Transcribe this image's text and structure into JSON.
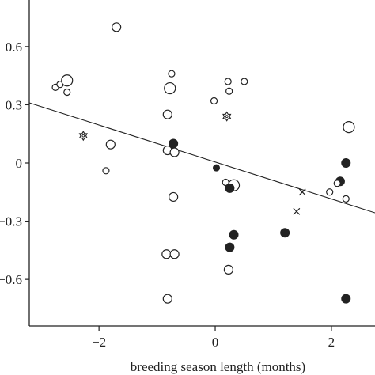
{
  "chart_data": {
    "type": "scatter",
    "title": "",
    "xlabel": "breeding season length (months)",
    "ylabel": "",
    "xlim": [
      -3.2,
      2.75
    ],
    "ylim": [
      -0.84,
      0.84
    ],
    "x_ticks": [
      {
        "value": -2,
        "label": "−2"
      },
      {
        "value": 0,
        "label": "0"
      },
      {
        "value": 2,
        "label": "2"
      }
    ],
    "y_ticks": [
      {
        "value": 0.6,
        "label": "0.6"
      },
      {
        "value": 0.3,
        "label": "0.3"
      },
      {
        "value": 0,
        "label": "0"
      },
      {
        "value": -0.3,
        "label": "−0.3"
      },
      {
        "value": -0.6,
        "label": "−0.6"
      }
    ],
    "grid": false,
    "colors": {
      "axis": "#222222",
      "marker": "#222222",
      "background": "#ffffff"
    },
    "regression_line": {
      "x": [
        -3.2,
        2.75
      ],
      "y": [
        0.31,
        -0.257
      ]
    },
    "points": [
      {
        "x": -1.7,
        "y": 0.7,
        "marker": "open-circle",
        "size": "medium"
      },
      {
        "x": -2.75,
        "y": 0.39,
        "marker": "open-circle",
        "size": "small"
      },
      {
        "x": -2.67,
        "y": 0.405,
        "marker": "open-circle",
        "size": "small"
      },
      {
        "x": -2.55,
        "y": 0.425,
        "marker": "open-circle",
        "size": "large"
      },
      {
        "x": -2.55,
        "y": 0.365,
        "marker": "open-circle",
        "size": "small"
      },
      {
        "x": -2.27,
        "y": 0.14,
        "marker": "star",
        "size": "medium"
      },
      {
        "x": -1.8,
        "y": 0.095,
        "marker": "open-circle",
        "size": "medium"
      },
      {
        "x": -1.88,
        "y": -0.04,
        "marker": "open-circle",
        "size": "small"
      },
      {
        "x": -0.75,
        "y": 0.46,
        "marker": "open-circle",
        "size": "small"
      },
      {
        "x": -0.78,
        "y": 0.385,
        "marker": "open-circle",
        "size": "large"
      },
      {
        "x": -0.82,
        "y": 0.25,
        "marker": "open-circle",
        "size": "medium"
      },
      {
        "x": -0.72,
        "y": 0.1,
        "marker": "filled-circle",
        "size": "medium"
      },
      {
        "x": -0.82,
        "y": 0.065,
        "marker": "open-circle",
        "size": "medium"
      },
      {
        "x": -0.7,
        "y": 0.055,
        "marker": "open-circle",
        "size": "medium"
      },
      {
        "x": -0.72,
        "y": -0.175,
        "marker": "open-circle",
        "size": "medium"
      },
      {
        "x": -0.84,
        "y": -0.47,
        "marker": "open-circle",
        "size": "medium"
      },
      {
        "x": -0.7,
        "y": -0.47,
        "marker": "open-circle",
        "size": "medium"
      },
      {
        "x": -0.82,
        "y": -0.7,
        "marker": "open-circle",
        "size": "medium"
      },
      {
        "x": -0.02,
        "y": 0.32,
        "marker": "open-circle",
        "size": "small"
      },
      {
        "x": 0.22,
        "y": 0.42,
        "marker": "open-circle",
        "size": "small"
      },
      {
        "x": 0.24,
        "y": 0.37,
        "marker": "open-circle",
        "size": "small"
      },
      {
        "x": 0.5,
        "y": 0.42,
        "marker": "open-circle",
        "size": "small"
      },
      {
        "x": 0.2,
        "y": 0.24,
        "marker": "star",
        "size": "medium"
      },
      {
        "x": 0.02,
        "y": -0.025,
        "marker": "filled-circle",
        "size": "small"
      },
      {
        "x": 0.18,
        "y": -0.1,
        "marker": "open-circle",
        "size": "small"
      },
      {
        "x": 0.32,
        "y": -0.115,
        "marker": "open-circle",
        "size": "large"
      },
      {
        "x": 0.25,
        "y": -0.13,
        "marker": "filled-circle",
        "size": "medium"
      },
      {
        "x": 0.32,
        "y": -0.37,
        "marker": "filled-circle",
        "size": "medium"
      },
      {
        "x": 0.25,
        "y": -0.435,
        "marker": "filled-circle",
        "size": "medium"
      },
      {
        "x": 0.23,
        "y": -0.55,
        "marker": "open-circle",
        "size": "medium"
      },
      {
        "x": 1.5,
        "y": -0.15,
        "marker": "cross",
        "size": "small"
      },
      {
        "x": 1.4,
        "y": -0.25,
        "marker": "cross",
        "size": "small"
      },
      {
        "x": 1.2,
        "y": -0.36,
        "marker": "filled-circle",
        "size": "medium"
      },
      {
        "x": 1.97,
        "y": -0.15,
        "marker": "open-circle",
        "size": "small"
      },
      {
        "x": 2.15,
        "y": -0.095,
        "marker": "filled-circle",
        "size": "medium"
      },
      {
        "x": 2.1,
        "y": -0.105,
        "marker": "open-circle",
        "size": "small"
      },
      {
        "x": 2.25,
        "y": -0.185,
        "marker": "open-circle",
        "size": "small"
      },
      {
        "x": 2.25,
        "y": 0.0,
        "marker": "filled-circle",
        "size": "medium"
      },
      {
        "x": 2.3,
        "y": 0.185,
        "marker": "open-circle",
        "size": "large"
      },
      {
        "x": 2.25,
        "y": -0.7,
        "marker": "filled-circle",
        "size": "medium"
      }
    ]
  }
}
